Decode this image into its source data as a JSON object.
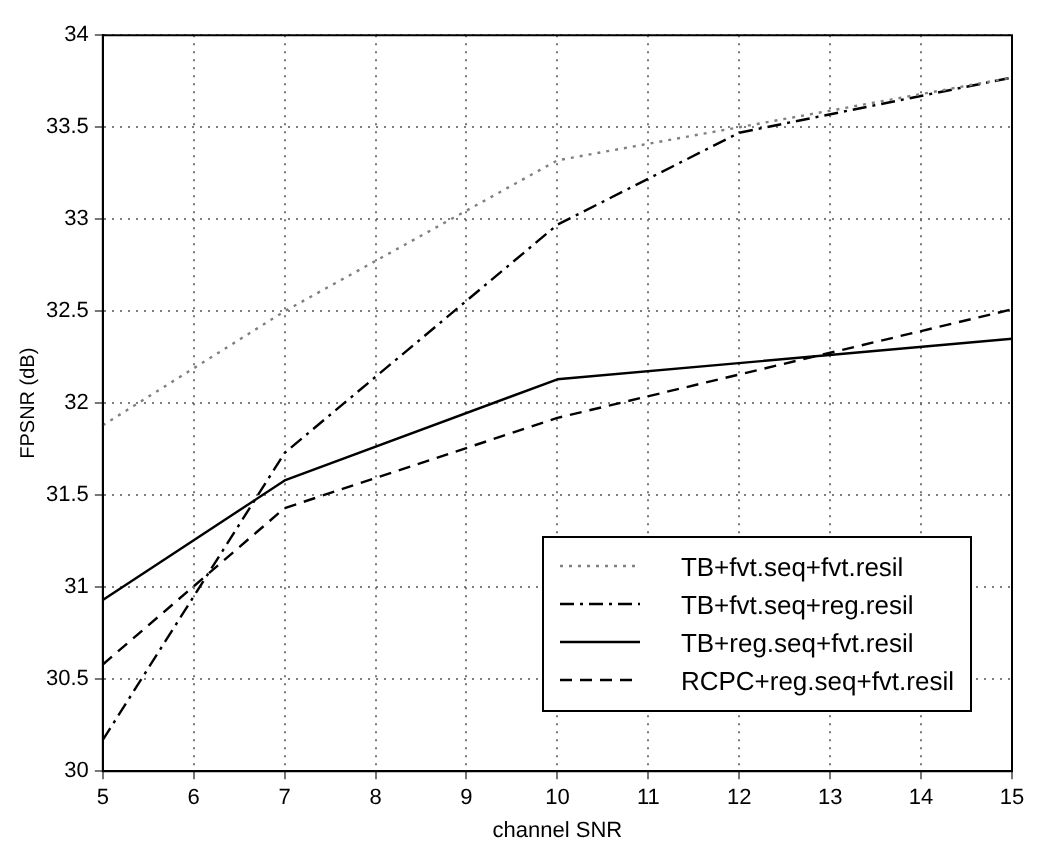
{
  "chart_data": {
    "type": "line",
    "xlabel": "channel SNR",
    "ylabel": "FPSNR (dB)",
    "xlim": [
      5,
      15
    ],
    "xticks": [
      5,
      6,
      7,
      8,
      9,
      10,
      11,
      12,
      13,
      14,
      15
    ],
    "ylim": [
      30,
      34
    ],
    "yticks": [
      30,
      30.5,
      31,
      31.5,
      32,
      32.5,
      33,
      33.5,
      34
    ],
    "grid": true,
    "legend": "bottom right",
    "marker": "none",
    "series": [
      {
        "name": "TB+fvt.seq+fvt.resil",
        "color": "#808080",
        "line_style": "dotted",
        "x": [
          5,
          7,
          10,
          15
        ],
        "values": [
          31.88,
          32.5,
          33.32,
          33.77
        ]
      },
      {
        "name": "TB+fvt.seq+reg.resil",
        "color": "#000000",
        "line_style": "dashdot",
        "x": [
          5,
          7,
          10,
          12,
          15
        ],
        "values": [
          30.17,
          31.73,
          32.97,
          33.47,
          33.77
        ]
      },
      {
        "name": "TB+reg.seq+fvt.resil",
        "color": "#000000",
        "line_style": "solid",
        "x": [
          5,
          7,
          10,
          15
        ],
        "values": [
          30.93,
          31.58,
          32.13,
          32.35
        ]
      },
      {
        "name": "RCPC+reg.seq+fvt.resil",
        "color": "#000000",
        "line_style": "dashed",
        "x": [
          5,
          7,
          10,
          15
        ],
        "values": [
          30.58,
          31.43,
          31.92,
          32.51
        ]
      }
    ]
  }
}
